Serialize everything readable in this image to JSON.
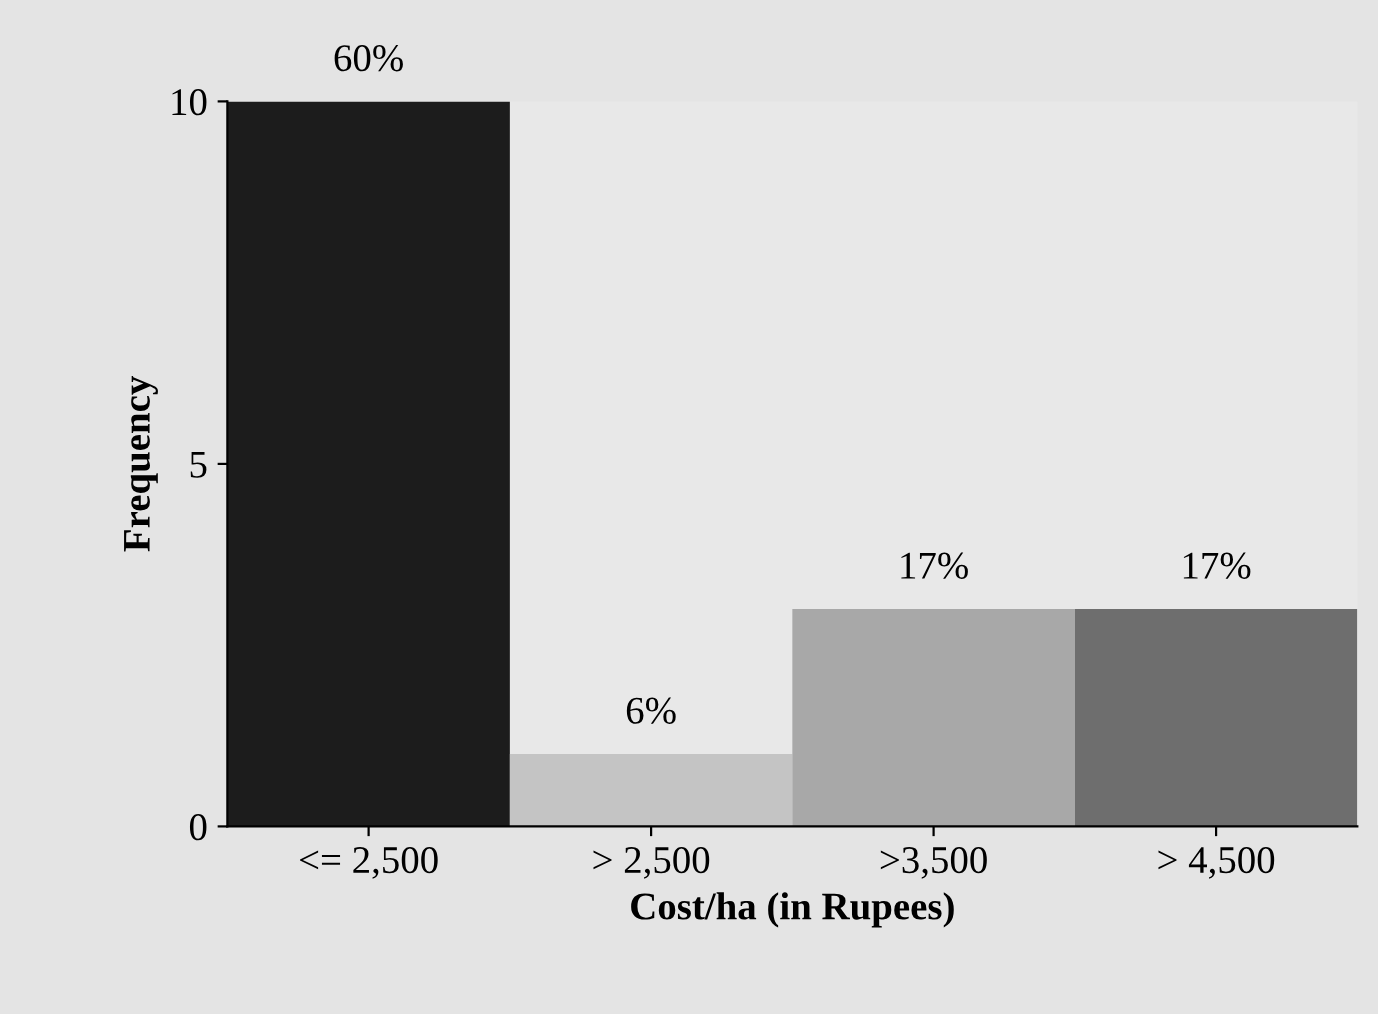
{
  "chart_data": {
    "type": "bar",
    "xlabel": "Cost/ha (in Rupees)",
    "ylabel": "Frequency",
    "categories": [
      "<= 2,500",
      "> 2,500",
      ">3,500",
      "> 4,500"
    ],
    "values": [
      10,
      1,
      3,
      3
    ],
    "colors": [
      "#1c1c1c",
      "#c4c4c4",
      "#a8a8a8",
      "#6e6e6e"
    ],
    "annotations": [
      {
        "text": "60%",
        "x": "<= 2,500",
        "y": 10
      },
      {
        "text": "6%",
        "x": "> 2,500",
        "y": 1
      },
      {
        "text": "17%",
        "x": ">3,500",
        "y": 3
      },
      {
        "text": "17%",
        "x": "> 4,500",
        "y": 3
      }
    ],
    "ylim": [
      0,
      10
    ],
    "yticks": [
      0,
      5,
      10
    ],
    "grid": false,
    "legend": false
  }
}
